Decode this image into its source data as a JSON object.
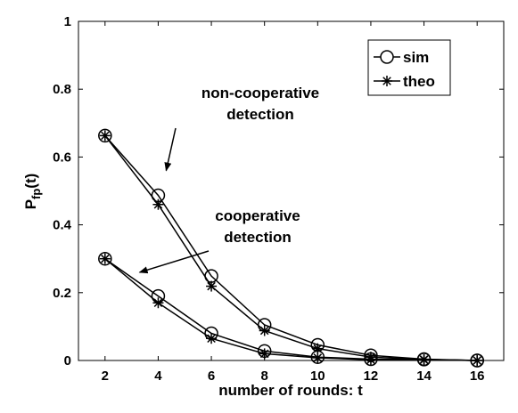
{
  "chart_data": {
    "type": "line",
    "xlabel": "number of rounds: t",
    "ylabel_main": "P",
    "ylabel_sub": "fp",
    "ylabel_suffix": "(t)",
    "x": [
      2,
      4,
      6,
      8,
      10,
      12,
      14,
      16
    ],
    "xlim": [
      1,
      17
    ],
    "ylim": [
      0,
      1
    ],
    "xticks": [
      "2",
      "4",
      "6",
      "8",
      "10",
      "12",
      "14",
      "16"
    ],
    "yticks": [
      "0",
      "0.2",
      "0.4",
      "0.6",
      "0.8",
      "1"
    ],
    "grid": false,
    "legend_position": "top-right",
    "legend": [
      {
        "label": "sim",
        "marker": "circle"
      },
      {
        "label": "theo",
        "marker": "asterisk"
      }
    ],
    "series": [
      {
        "group": "non-cooperative detection",
        "kind": "sim",
        "marker": "circle",
        "values": [
          0.663,
          0.487,
          0.249,
          0.105,
          0.046,
          0.015,
          0.004,
          0.0
        ]
      },
      {
        "group": "non-cooperative detection",
        "kind": "theo",
        "marker": "asterisk",
        "values": [
          0.663,
          0.46,
          0.219,
          0.088,
          0.035,
          0.01,
          0.003,
          0.0
        ]
      },
      {
        "group": "cooperative detection",
        "kind": "sim",
        "marker": "circle",
        "values": [
          0.3,
          0.19,
          0.08,
          0.028,
          0.01,
          0.004,
          0.003,
          0.0
        ]
      },
      {
        "group": "cooperative detection",
        "kind": "theo",
        "marker": "asterisk",
        "values": [
          0.3,
          0.17,
          0.065,
          0.02,
          0.008,
          0.002,
          0.002,
          0.0
        ]
      }
    ],
    "annotations": [
      {
        "lines": [
          "non-cooperative",
          "detection"
        ],
        "points_to": {
          "x": 4.3,
          "y": 0.56
        }
      },
      {
        "lines": [
          "cooperative",
          "detection"
        ],
        "points_to": {
          "x": 3.3,
          "y": 0.26
        }
      }
    ]
  }
}
